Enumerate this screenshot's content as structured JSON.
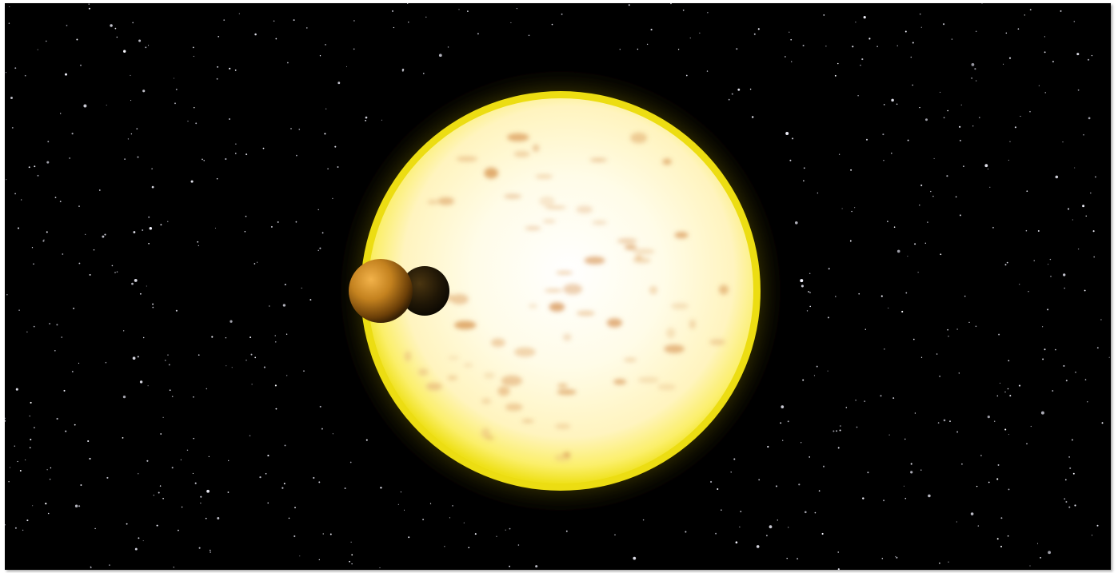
{
  "scene": {
    "subject": "star-with-two-transiting-planets",
    "colors": {
      "space": "#000000",
      "star_core": "#fffdf0",
      "star_mid": "#fff7c8",
      "star_limb": "#f4e61a",
      "corona": "#d9d000",
      "sunspot": "#c9783a",
      "planet_near": "#c9882a",
      "planet_far": "#1a1206",
      "frame_border": "#ffffff"
    }
  }
}
